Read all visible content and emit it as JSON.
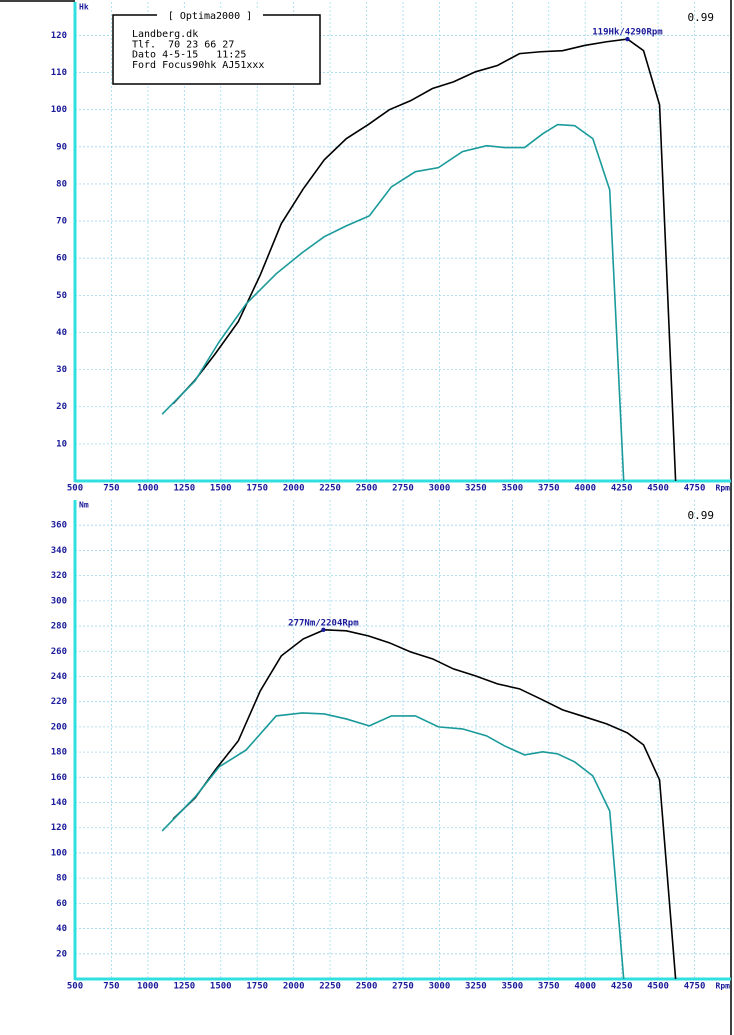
{
  "chart_data": [
    {
      "type": "line",
      "y_label": "Hk",
      "x_label": "Rpm",
      "corner_text": "0.99",
      "info_box": {
        "title": "[ Optima2000 ]",
        "lines": [
          "Landberg.dk",
          "Tlf.  70 23 66 27",
          "Dato 4-5-15   11:25",
          "Ford Focus90hk AJ51xxx"
        ]
      },
      "xlim": [
        500,
        5000
      ],
      "xticks": [
        500,
        750,
        1000,
        1250,
        1500,
        1750,
        2000,
        2250,
        2500,
        2750,
        3000,
        3250,
        3500,
        3750,
        4000,
        4250,
        4500,
        4750
      ],
      "ylim": [
        0,
        129
      ],
      "yticks": [
        10,
        20,
        30,
        40,
        50,
        60,
        70,
        80,
        90,
        100,
        110,
        120
      ],
      "grid": true,
      "annotations": [
        {
          "text": "119Hk/4290Rpm",
          "x": 4290,
          "y": 119
        }
      ],
      "series": [
        {
          "color": "#000000",
          "x": [
            1173,
            1324,
            1461,
            1620,
            1771,
            1915,
            2066,
            2210,
            2361,
            2512,
            2657,
            2801,
            2952,
            3096,
            3247,
            3398,
            3549,
            3694,
            3845,
            3996,
            4147,
            4290,
            4400,
            4510,
            4620
          ],
          "values": [
            20.8,
            27.2,
            34.2,
            42.9,
            55.5,
            69.3,
            78.7,
            86.5,
            92.2,
            96,
            100,
            102.4,
            105.7,
            107.5,
            110.2,
            111.9,
            115.1,
            115.6,
            115.9,
            117.3,
            118.3,
            119,
            115.9,
            101.3,
            0
          ]
        },
        {
          "color": "#1a9a9a",
          "x": [
            1098,
            1324,
            1489,
            1674,
            1880,
            2059,
            2210,
            2361,
            2519,
            2670,
            2835,
            2993,
            3158,
            3323,
            3447,
            3584,
            3708,
            3811,
            3928,
            4052,
            4168,
            4264
          ],
          "values": [
            18,
            27,
            37.5,
            47.7,
            55.8,
            61.5,
            65.8,
            68.7,
            71.4,
            79.2,
            83.3,
            84.4,
            88.7,
            90.3,
            89.8,
            89.8,
            93.5,
            96,
            95.7,
            92.2,
            78.4,
            0
          ]
        }
      ]
    },
    {
      "type": "line",
      "y_label": "Nm",
      "x_label": "Rpm",
      "corner_text": "0.99",
      "xlim": [
        500,
        5000
      ],
      "xticks": [
        500,
        750,
        1000,
        1250,
        1500,
        1750,
        2000,
        2250,
        2500,
        2750,
        3000,
        3250,
        3500,
        3750,
        4000,
        4250,
        4500,
        4750
      ],
      "ylim": [
        0,
        380
      ],
      "yticks": [
        20,
        40,
        60,
        80,
        100,
        120,
        140,
        160,
        180,
        200,
        220,
        240,
        260,
        280,
        300,
        320,
        340,
        360
      ],
      "grid": true,
      "annotations": [
        {
          "text": "277Nm/2204Rpm",
          "x": 2204,
          "y": 277
        }
      ],
      "series": [
        {
          "color": "#000000",
          "x": [
            1173,
            1324,
            1468,
            1620,
            1771,
            1915,
            2066,
            2210,
            2361,
            2512,
            2657,
            2801,
            2952,
            3096,
            3247,
            3398,
            3549,
            3694,
            3845,
            3996,
            4147,
            4290,
            4400,
            4510,
            4620
          ],
          "values": [
            127,
            143.7,
            166.7,
            188.9,
            228.6,
            256.3,
            269.8,
            277,
            276.2,
            272.2,
            266.7,
            259.5,
            254,
            246,
            240.5,
            234.1,
            230.2,
            222.2,
            213.5,
            208,
            202.4,
            195.2,
            185.7,
            157.9,
            0
          ]
        },
        {
          "color": "#1a9a9a",
          "x": [
            1098,
            1324,
            1489,
            1674,
            1880,
            2059,
            2210,
            2361,
            2519,
            2670,
            2835,
            2993,
            3158,
            3323,
            3447,
            3584,
            3708,
            3811,
            3928,
            4052,
            4168,
            4264
          ],
          "values": [
            117.5,
            144.4,
            168.3,
            181.7,
            208.7,
            211.1,
            210.3,
            206.3,
            200.8,
            208.7,
            208.7,
            200,
            198.4,
            192.9,
            184.9,
            177.8,
            180.2,
            178.6,
            172.2,
            161.1,
            133.3,
            0
          ]
        }
      ]
    }
  ]
}
